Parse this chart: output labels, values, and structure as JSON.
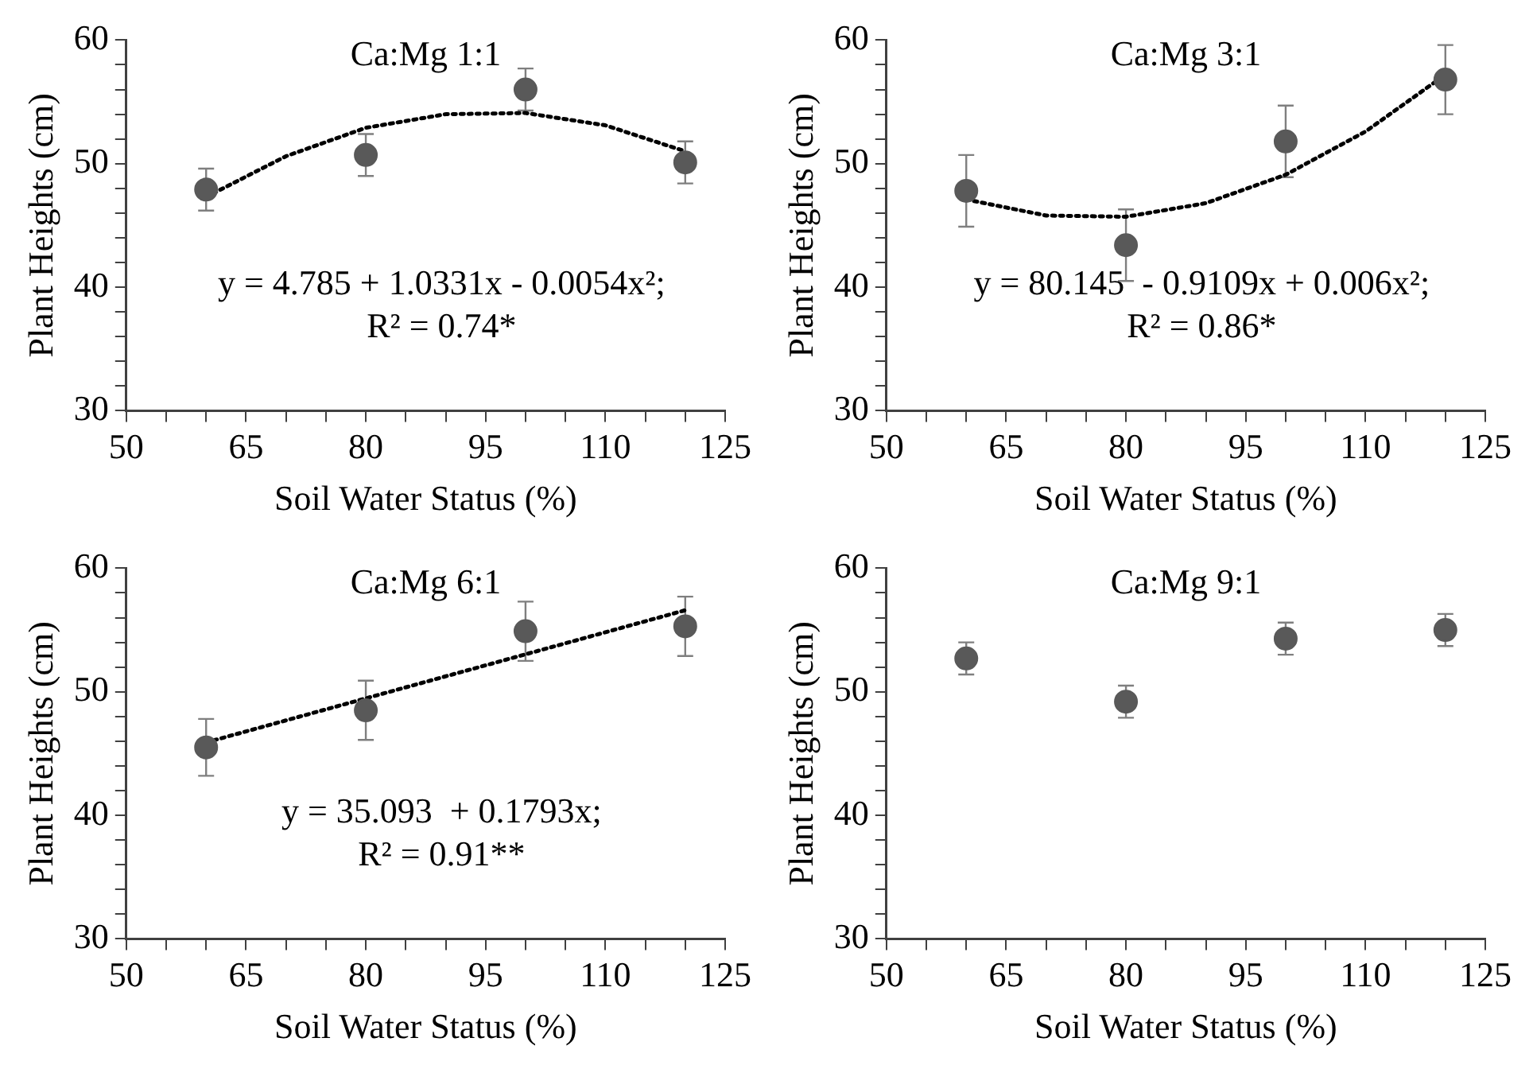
{
  "chart_data": [
    {
      "type": "scatter",
      "title": "Ca:Mg 1:1",
      "xlabel": "Soil Water Status (%)",
      "ylabel": "Plant Heights (cm)",
      "xlim": [
        50,
        125
      ],
      "ylim": [
        30,
        60
      ],
      "xticks": [
        50,
        {
          "value": 55,
          "label": null
        },
        {
          "value": 60,
          "label": null
        },
        65,
        {
          "value": 70,
          "label": null
        },
        {
          "value": 75,
          "label": null
        },
        80,
        {
          "value": 85,
          "label": null
        },
        {
          "value": 90,
          "label": null
        },
        95,
        {
          "value": 100,
          "label": null
        },
        {
          "value": 105,
          "label": null
        },
        110,
        {
          "value": 115,
          "label": null
        },
        {
          "value": 120,
          "label": null
        },
        125
      ],
      "yticks": [
        30,
        {
          "value": 32,
          "label": null
        },
        {
          "value": 34,
          "label": null
        },
        {
          "value": 36,
          "label": null
        },
        {
          "value": 38,
          "label": null
        },
        40,
        {
          "value": 42,
          "label": null
        },
        {
          "value": 44,
          "label": null
        },
        {
          "value": 46,
          "label": null
        },
        {
          "value": 48,
          "label": null
        },
        50,
        {
          "value": 52,
          "label": null
        },
        {
          "value": 54,
          "label": null
        },
        {
          "value": 56,
          "label": null
        },
        {
          "value": 58,
          "label": null
        },
        60
      ],
      "annotations": [
        "y = 4.785 + 1.0331x - 0.0054x²;",
        "R² = 0.74*"
      ],
      "series": [
        {
          "type": "scatter",
          "x": [
            60,
            80,
            100,
            120
          ],
          "values": [
            47.9,
            50.7,
            56.0,
            50.1
          ],
          "errors": [
            1.7,
            1.7,
            1.7,
            1.7
          ],
          "color": "#595959",
          "marker": "circle"
        },
        {
          "type": "line",
          "x": [
            60,
            70,
            80,
            90,
            100,
            110,
            120
          ],
          "values": [
            47.3,
            50.6,
            52.9,
            54.0,
            54.1,
            53.1,
            51.0
          ],
          "color": "#000000",
          "marker": "none",
          "line_style": "dotted"
        }
      ]
    },
    {
      "type": "scatter",
      "title": "Ca:Mg 3:1",
      "xlabel": "Soil Water Status (%)",
      "ylabel": "Plant Heights (cm)",
      "xlim": [
        50,
        125
      ],
      "ylim": [
        30,
        60
      ],
      "xticks": [
        50,
        {
          "value": 55,
          "label": null
        },
        {
          "value": 60,
          "label": null
        },
        65,
        {
          "value": 70,
          "label": null
        },
        {
          "value": 75,
          "label": null
        },
        80,
        {
          "value": 85,
          "label": null
        },
        {
          "value": 90,
          "label": null
        },
        95,
        {
          "value": 100,
          "label": null
        },
        {
          "value": 105,
          "label": null
        },
        110,
        {
          "value": 115,
          "label": null
        },
        {
          "value": 120,
          "label": null
        },
        125
      ],
      "yticks": [
        30,
        {
          "value": 32,
          "label": null
        },
        {
          "value": 34,
          "label": null
        },
        {
          "value": 36,
          "label": null
        },
        {
          "value": 38,
          "label": null
        },
        40,
        {
          "value": 42,
          "label": null
        },
        {
          "value": 44,
          "label": null
        },
        {
          "value": 46,
          "label": null
        },
        {
          "value": 48,
          "label": null
        },
        50,
        {
          "value": 52,
          "label": null
        },
        {
          "value": 54,
          "label": null
        },
        {
          "value": 56,
          "label": null
        },
        {
          "value": 58,
          "label": null
        },
        60
      ],
      "annotations": [
        "y = 80.145  - 0.9109x + 0.006x²;",
        "R² = 0.86*"
      ],
      "series": [
        {
          "type": "scatter",
          "x": [
            60,
            80,
            100,
            120
          ],
          "values": [
            47.8,
            43.4,
            51.8,
            56.8
          ],
          "errors": [
            2.9,
            2.9,
            2.9,
            2.8
          ],
          "color": "#595959",
          "marker": "circle"
        },
        {
          "type": "line",
          "x": [
            60,
            70,
            80,
            90,
            100,
            110,
            120
          ],
          "values": [
            47.1,
            45.8,
            45.7,
            46.8,
            49.1,
            52.6,
            57.2
          ],
          "color": "#000000",
          "marker": "none",
          "line_style": "dotted"
        }
      ]
    },
    {
      "type": "scatter",
      "title": "Ca:Mg 6:1",
      "xlabel": "Soil Water Status (%)",
      "ylabel": "Plant Heights (cm)",
      "xlim": [
        50,
        125
      ],
      "ylim": [
        30,
        60
      ],
      "xticks": [
        50,
        {
          "value": 55,
          "label": null
        },
        {
          "value": 60,
          "label": null
        },
        65,
        {
          "value": 70,
          "label": null
        },
        {
          "value": 75,
          "label": null
        },
        80,
        {
          "value": 85,
          "label": null
        },
        {
          "value": 90,
          "label": null
        },
        95,
        {
          "value": 100,
          "label": null
        },
        {
          "value": 105,
          "label": null
        },
        110,
        {
          "value": 115,
          "label": null
        },
        {
          "value": 120,
          "label": null
        },
        125
      ],
      "yticks": [
        30,
        {
          "value": 32,
          "label": null
        },
        {
          "value": 34,
          "label": null
        },
        {
          "value": 36,
          "label": null
        },
        {
          "value": 38,
          "label": null
        },
        40,
        {
          "value": 42,
          "label": null
        },
        {
          "value": 44,
          "label": null
        },
        {
          "value": 46,
          "label": null
        },
        {
          "value": 48,
          "label": null
        },
        50,
        {
          "value": 52,
          "label": null
        },
        {
          "value": 54,
          "label": null
        },
        {
          "value": 56,
          "label": null
        },
        {
          "value": 58,
          "label": null
        },
        60
      ],
      "annotations": [
        "y = 35.093  + 0.1793x;",
        "R² = 0.91**"
      ],
      "series": [
        {
          "type": "scatter",
          "x": [
            60,
            80,
            100,
            120
          ],
          "values": [
            45.5,
            48.5,
            54.9,
            55.3
          ],
          "errors": [
            2.3,
            2.4,
            2.4,
            2.4
          ],
          "color": "#595959",
          "marker": "circle"
        },
        {
          "type": "line",
          "x": [
            60,
            120
          ],
          "values": [
            45.9,
            56.6
          ],
          "color": "#000000",
          "marker": "none",
          "line_style": "dotted"
        }
      ]
    },
    {
      "type": "scatter",
      "title": "Ca:Mg 9:1",
      "xlabel": "Soil Water Status (%)",
      "ylabel": "Plant Heights (cm)",
      "xlim": [
        50,
        125
      ],
      "ylim": [
        30,
        60
      ],
      "xticks": [
        50,
        {
          "value": 55,
          "label": null
        },
        {
          "value": 60,
          "label": null
        },
        65,
        {
          "value": 70,
          "label": null
        },
        {
          "value": 75,
          "label": null
        },
        80,
        {
          "value": 85,
          "label": null
        },
        {
          "value": 90,
          "label": null
        },
        95,
        {
          "value": 100,
          "label": null
        },
        {
          "value": 105,
          "label": null
        },
        110,
        {
          "value": 115,
          "label": null
        },
        {
          "value": 120,
          "label": null
        },
        125
      ],
      "yticks": [
        30,
        {
          "value": 32,
          "label": null
        },
        {
          "value": 34,
          "label": null
        },
        {
          "value": 36,
          "label": null
        },
        {
          "value": 38,
          "label": null
        },
        40,
        {
          "value": 42,
          "label": null
        },
        {
          "value": 44,
          "label": null
        },
        {
          "value": 46,
          "label": null
        },
        {
          "value": 48,
          "label": null
        },
        50,
        {
          "value": 52,
          "label": null
        },
        {
          "value": 54,
          "label": null
        },
        {
          "value": 56,
          "label": null
        },
        {
          "value": 58,
          "label": null
        },
        60
      ],
      "series": [
        {
          "type": "scatter",
          "x": [
            60,
            80,
            100,
            120
          ],
          "values": [
            52.7,
            49.2,
            54.3,
            55.0
          ],
          "errors": [
            1.3,
            1.3,
            1.3,
            1.3
          ],
          "color": "#595959",
          "marker": "circle"
        }
      ]
    }
  ]
}
